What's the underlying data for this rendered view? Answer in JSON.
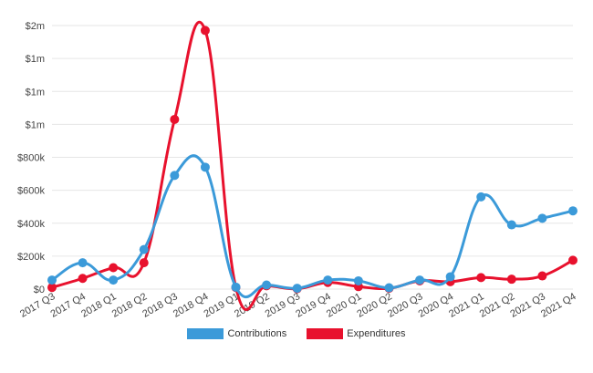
{
  "chart_data": {
    "type": "line",
    "categories": [
      "2017 Q3",
      "2017 Q4",
      "2018 Q1",
      "2018 Q2",
      "2018 Q3",
      "2018 Q4",
      "2019 Q1",
      "2019 Q2",
      "2019 Q3",
      "2019 Q4",
      "2020 Q1",
      "2020 Q2",
      "2020 Q3",
      "2020 Q4",
      "2021 Q1",
      "2021 Q2",
      "2021 Q3",
      "2021 Q4"
    ],
    "series": [
      {
        "name": "Contributions",
        "color": "#3b9ad9",
        "values": [
          55000,
          160000,
          55000,
          240000,
          690000,
          740000,
          12000,
          25000,
          5000,
          55000,
          50000,
          8000,
          55000,
          75000,
          560000,
          390000,
          430000,
          475000
        ]
      },
      {
        "name": "Expenditures",
        "color": "#e8112d",
        "values": [
          10000,
          65000,
          130000,
          160000,
          1030000,
          1570000,
          10000,
          20000,
          2000,
          40000,
          15000,
          5000,
          50000,
          45000,
          70000,
          60000,
          80000,
          175000
        ]
      }
    ],
    "y_ticks": [
      "$0",
      "$200k",
      "$400k",
      "$600k",
      "$800k",
      "$1m",
      "$1m",
      "$1m",
      "$2m"
    ],
    "ylim": [
      0,
      1600000
    ],
    "grid": true,
    "legend_position": "bottom"
  }
}
